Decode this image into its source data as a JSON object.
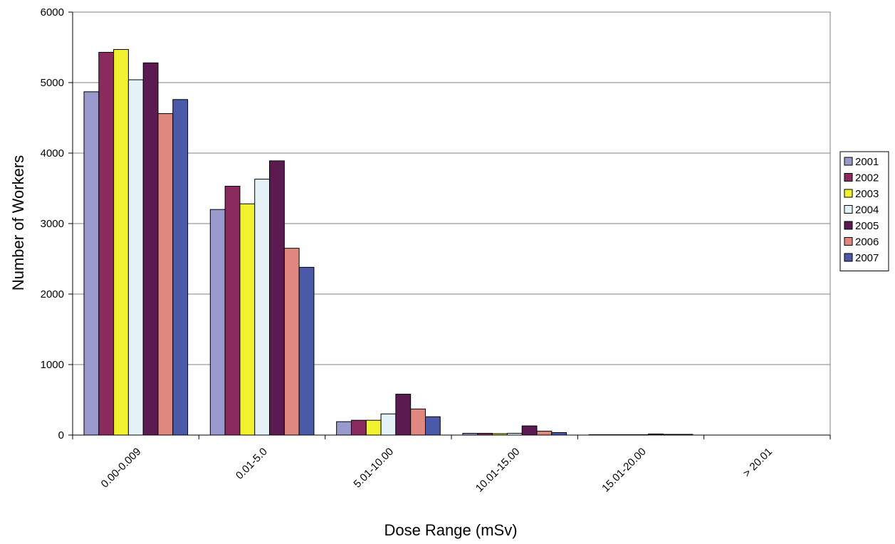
{
  "chart_data": {
    "type": "bar",
    "title": "",
    "xlabel": "Dose Range (mSv)",
    "ylabel": "Number of Workers",
    "ylim": [
      0,
      6000
    ],
    "yticks": [
      "0",
      "1000",
      "2000",
      "3000",
      "4000",
      "5000",
      "6000"
    ],
    "grid": "horizontal",
    "legend_position": "right",
    "categories": [
      "0.00-0.009",
      "0.01-5.0",
      "5.01-10.00",
      "10.01-15.00",
      "15.01-20.00",
      "> 20.01"
    ],
    "series": [
      {
        "name": "2001",
        "color": "#9999CC",
        "values": [
          4870,
          3200,
          190,
          25,
          5,
          0
        ]
      },
      {
        "name": "2002",
        "color": "#8B2A5E",
        "values": [
          5430,
          3530,
          210,
          25,
          5,
          0
        ]
      },
      {
        "name": "2003",
        "color": "#F2F230",
        "values": [
          5470,
          3280,
          210,
          20,
          5,
          0
        ]
      },
      {
        "name": "2004",
        "color": "#E4F2F8",
        "values": [
          5040,
          3630,
          300,
          25,
          5,
          0
        ]
      },
      {
        "name": "2005",
        "color": "#5C1A52",
        "values": [
          5280,
          3890,
          580,
          130,
          15,
          0
        ]
      },
      {
        "name": "2006",
        "color": "#E08880",
        "values": [
          4560,
          2650,
          370,
          55,
          10,
          0
        ]
      },
      {
        "name": "2007",
        "color": "#4B5AA8",
        "values": [
          4760,
          2380,
          260,
          35,
          10,
          0
        ]
      }
    ]
  }
}
